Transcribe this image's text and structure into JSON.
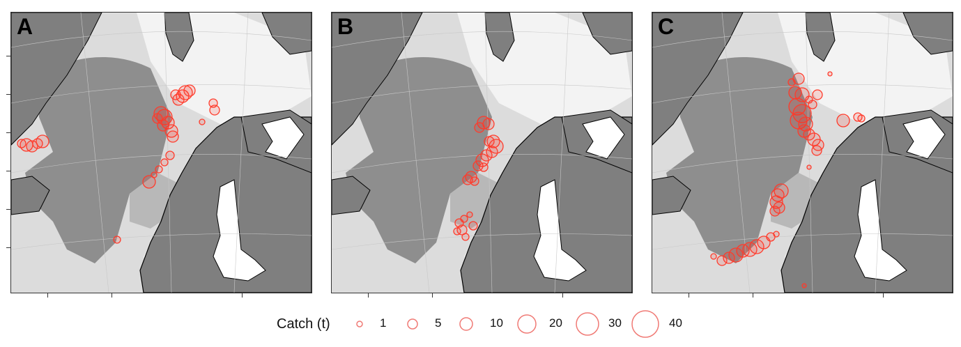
{
  "panels": [
    {
      "id": "A",
      "label": "A"
    },
    {
      "id": "B",
      "label": "B"
    },
    {
      "id": "C",
      "label": "C"
    }
  ],
  "colors": {
    "land": "#7f7f7f",
    "deep_sea": "#8a8a8a",
    "mid_sea": "#b5b5b5",
    "shelf": "#dcdcdc",
    "shallow": "#f3f3f3",
    "coast": "#000000",
    "catch_marker": "#ff2a1a"
  },
  "legend": {
    "title": "Catch (t)",
    "items": [
      {
        "label": "1",
        "value": 1
      },
      {
        "label": "5",
        "value": 5
      },
      {
        "label": "10",
        "value": 10
      },
      {
        "label": "20",
        "value": 20
      },
      {
        "label": "30",
        "value": 30
      },
      {
        "label": "40",
        "value": 40
      }
    ]
  }
}
